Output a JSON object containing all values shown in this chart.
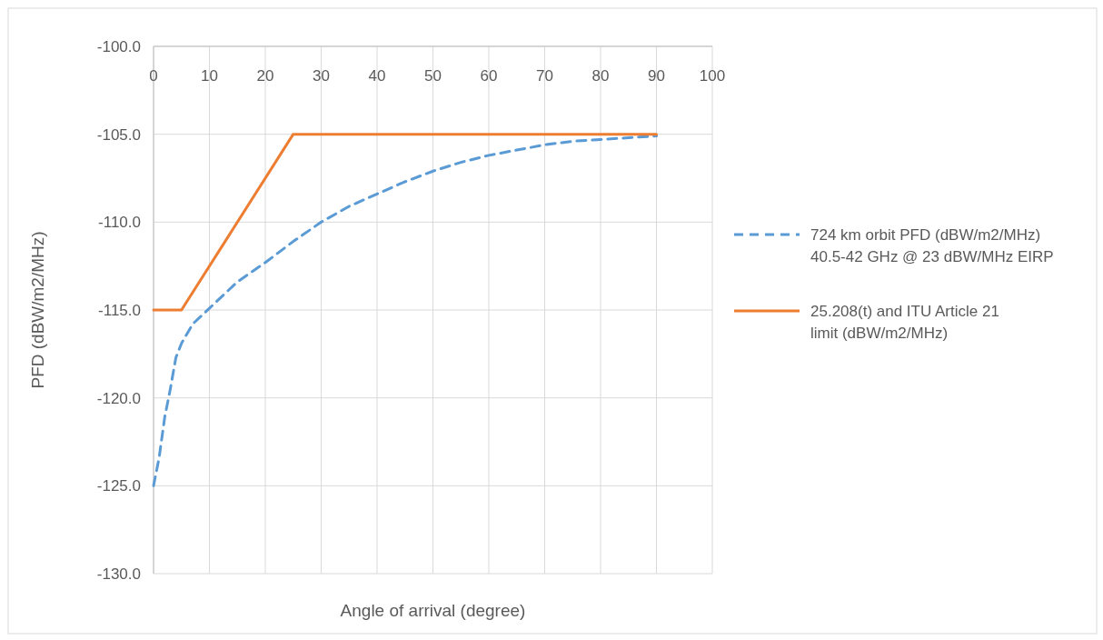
{
  "chart_data": {
    "type": "line",
    "xlabel": "Angle of arrival (degree)",
    "ylabel": "PFD (dBW/m2/MHz)",
    "xlim": [
      0,
      100
    ],
    "xticks": [
      0,
      10,
      20,
      30,
      40,
      50,
      60,
      70,
      80,
      90,
      100
    ],
    "ylim": [
      -130,
      -100
    ],
    "yticks": [
      {
        "value": -130,
        "label": "-130.0"
      },
      {
        "value": -125,
        "label": "-125.0"
      },
      {
        "value": -120,
        "label": "-120.0"
      },
      {
        "value": -115,
        "label": "-115.0"
      },
      {
        "value": -110,
        "label": "-110.0"
      },
      {
        "value": -105,
        "label": "-105.0"
      },
      {
        "value": -100,
        "label": "-100.0"
      }
    ],
    "grid": true,
    "legend": "right",
    "series": [
      {
        "name": "724 km orbit PFD (dBW/m2/MHz) 40.5-42 GHz @ 23 dBW/MHz EIRP",
        "color": "#5b9bd5",
        "line_style": "dashed",
        "x": [
          0,
          1,
          2,
          3,
          4,
          5,
          7,
          10,
          15,
          20,
          25,
          30,
          35,
          40,
          45,
          50,
          55,
          60,
          65,
          70,
          75,
          80,
          85,
          90
        ],
        "values": [
          -125,
          -123.4,
          -121.1,
          -119.5,
          -117.7,
          -116.9,
          -115.8,
          -114.9,
          -113.4,
          -112.3,
          -111.1,
          -110,
          -109.1,
          -108.4,
          -107.7,
          -107.1,
          -106.6,
          -106.2,
          -105.9,
          -105.6,
          -105.4,
          -105.3,
          -105.2,
          -105.1
        ]
      },
      {
        "name": "25.208(t) and ITU Article 21 limit (dBW/m2/MHz)",
        "color": "#ed7d31",
        "line_style": "solid",
        "x": [
          0,
          5,
          25,
          90
        ],
        "values": [
          -115,
          -115,
          -105,
          -105
        ]
      }
    ]
  }
}
